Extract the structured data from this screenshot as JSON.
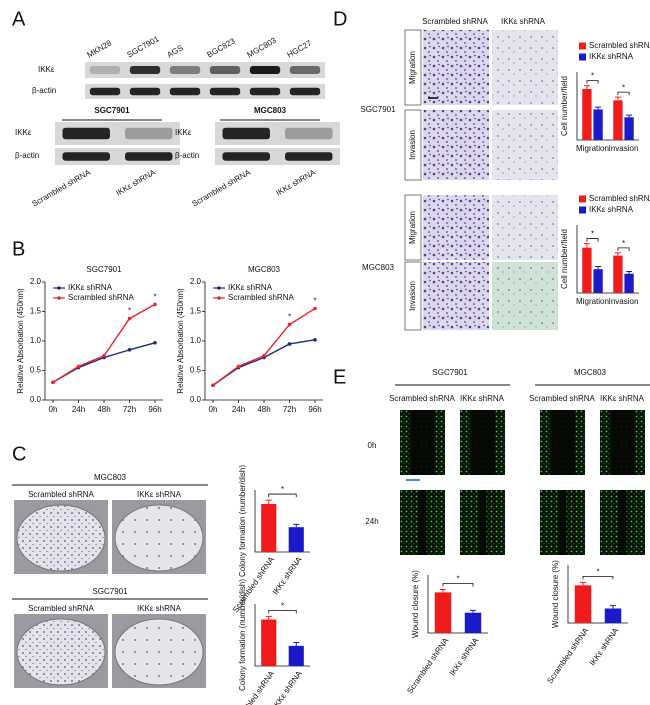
{
  "panel_labels": [
    "A",
    "B",
    "C",
    "D",
    "E"
  ],
  "panel_a": {
    "lanes": [
      "MKN28",
      "SGC7901",
      "AGS",
      "BGC823",
      "MGC803",
      "HGC27"
    ],
    "rows": [
      "IKKε",
      "β-actin"
    ],
    "blots": [
      {
        "title": "SGC7901",
        "rows": [
          "IKKε",
          "β-actin"
        ],
        "lanes": [
          "Scrambled shRNA",
          "IKKε shRNA"
        ]
      },
      {
        "title": "MGC803",
        "rows": [
          "IKKε",
          "β-actin"
        ],
        "lanes": [
          "Scrambled shRNA",
          "IKKε shRNA"
        ]
      }
    ]
  },
  "panel_b": {
    "charts": [
      {
        "type": "line",
        "title": "SGC7901",
        "y_label": "Relative Absorbation (450nm)",
        "x": [
          "0h",
          "24h",
          "48h",
          "72h",
          "96h"
        ],
        "ylim": [
          0,
          2
        ],
        "yticks": [
          {
            "value": 0,
            "label": "0.0"
          },
          {
            "value": 0.5,
            "label": "0.5"
          },
          {
            "value": 1,
            "label": "1.0"
          },
          {
            "value": 1.5,
            "label": "1.5"
          },
          {
            "value": 2,
            "label": "2.0"
          }
        ],
        "series": [
          {
            "name": "IKKε shRNA",
            "color": "#1f2a7a",
            "values": [
              0.3,
              0.55,
              0.72,
              0.85,
              0.97
            ]
          },
          {
            "name": "Scrambled shRNA",
            "color": "#e8262b",
            "values": [
              0.3,
              0.57,
              0.75,
              1.38,
              1.62
            ]
          }
        ],
        "annotations": [
          "*",
          "*"
        ]
      },
      {
        "type": "line",
        "title": "MGC803",
        "y_label": "Relative Absorbation (450nm)",
        "x": [
          "0h",
          "24h",
          "48h",
          "72h",
          "96h"
        ],
        "ylim": [
          0,
          2
        ],
        "yticks": [
          {
            "value": 0,
            "label": "0.0"
          },
          {
            "value": 0.5,
            "label": "0.5"
          },
          {
            "value": 1,
            "label": "1.0"
          },
          {
            "value": 1.5,
            "label": "1.5"
          },
          {
            "value": 2,
            "label": "2.0"
          }
        ],
        "series": [
          {
            "name": "IKKε shRNA",
            "color": "#1f2a7a",
            "values": [
              0.25,
              0.55,
              0.72,
              0.95,
              1.02
            ]
          },
          {
            "name": "Scrambled shRNA",
            "color": "#e8262b",
            "values": [
              0.25,
              0.57,
              0.75,
              1.28,
              1.55
            ]
          }
        ],
        "annotations": [
          "*",
          "*"
        ]
      }
    ]
  },
  "panel_c": {
    "groups": [
      {
        "title": "MGC803",
        "columns": [
          "Scrambled shRNA",
          "IKKε shRNA"
        ],
        "chart": {
          "type": "bar",
          "y_label": "Colony formation (number/dish)",
          "categories": [
            "Scrambled shRNA",
            "IKKε shRNA"
          ],
          "values": [
            310,
            160
          ],
          "errors": [
            25,
            18
          ],
          "colors": [
            "#f01c1c",
            "#1a1ac8"
          ],
          "ylim": [
            0,
            400
          ],
          "annotations": [
            "*"
          ]
        }
      },
      {
        "title": "SGC7901",
        "columns": [
          "Scrambled shRNA",
          "IKKε shRNA"
        ],
        "chart": {
          "type": "bar",
          "y_label": "Colony formation (number/dish)",
          "categories": [
            "Scrambled shRNA",
            "IKKε shRNA"
          ],
          "values": [
            300,
            130
          ],
          "errors": [
            20,
            22
          ],
          "colors": [
            "#f01c1c",
            "#1a1ac8"
          ],
          "ylim": [
            0,
            400
          ],
          "annotations": [
            "*"
          ]
        }
      }
    ]
  },
  "panel_d": {
    "columns": [
      "Scrambled shRNA",
      "IKKε shRNA"
    ],
    "groups": [
      {
        "name": "SGC7901",
        "rows": [
          "Migration",
          "Invasion"
        ],
        "chart": {
          "type": "bar",
          "y_label": "Cell number/field",
          "categories": [
            "Migration",
            "Invasion"
          ],
          "ylim": [
            0,
            300
          ],
          "series": [
            {
              "name": "Scrambled shRNA",
              "color": "#f01c1c",
              "values": [
                225,
                175
              ],
              "errors": [
                15,
                14
              ]
            },
            {
              "name": "IKKε shRNA",
              "color": "#1a1ac8",
              "values": [
                135,
                100
              ],
              "errors": [
                10,
                10
              ]
            }
          ],
          "annotations": [
            "*",
            "*"
          ]
        }
      },
      {
        "name": "MGC803",
        "rows": [
          "Migration",
          "Invasion"
        ],
        "chart": {
          "type": "bar",
          "y_label": "Cell number/field",
          "categories": [
            "Migration",
            "Invasion"
          ],
          "ylim": [
            0,
            300
          ],
          "series": [
            {
              "name": "Scrambled shRNA",
              "color": "#f01c1c",
              "values": [
                200,
                165
              ],
              "errors": [
                18,
                12
              ]
            },
            {
              "name": "IKKε shRNA",
              "color": "#1a1ac8",
              "values": [
                105,
                85
              ],
              "errors": [
                12,
                10
              ]
            }
          ],
          "annotations": [
            "*",
            "*"
          ]
        }
      }
    ]
  },
  "panel_e": {
    "rows": [
      "0h",
      "24h"
    ],
    "groups": [
      {
        "title": "SGC7901",
        "columns": [
          "Scrambled shRNA",
          "IKKε shRNA"
        ],
        "chart": {
          "type": "bar",
          "y_label": "Wound closure (%)",
          "categories": [
            "Scrambled shRNA",
            "IKKε shRNA"
          ],
          "values": [
            70,
            35
          ],
          "errors": [
            5,
            4
          ],
          "colors": [
            "#f01c1c",
            "#1a1ac8"
          ],
          "ylim": [
            0,
            100
          ],
          "annotations": [
            "*"
          ]
        }
      },
      {
        "title": "MGC803",
        "columns": [
          "Scrambled shRNA",
          "IKKε shRNA"
        ],
        "chart": {
          "type": "bar",
          "y_label": "Wound closure (%)",
          "categories": [
            "Scrambled shRNA",
            "IKKε shRNA"
          ],
          "values": [
            65,
            25
          ],
          "errors": [
            5,
            5
          ],
          "colors": [
            "#f01c1c",
            "#1a1ac8"
          ],
          "ylim": [
            0,
            100
          ],
          "annotations": [
            "*"
          ]
        }
      }
    ]
  }
}
